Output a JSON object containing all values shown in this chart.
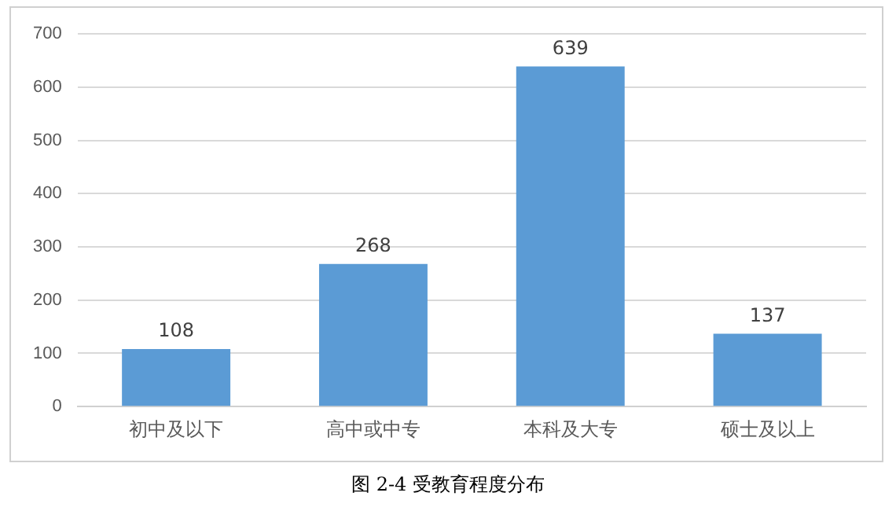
{
  "chart_data": {
    "type": "bar",
    "categories": [
      "初中及以下",
      "高中或中专",
      "本科及大专",
      "硕士及以上"
    ],
    "values": [
      108,
      268,
      639,
      137
    ],
    "color": "#5b9bd5",
    "ylim": [
      0,
      700
    ],
    "yticks": [
      0,
      100,
      200,
      300,
      400,
      500,
      600,
      700
    ],
    "grid": "y",
    "data_labels": true,
    "legend": false,
    "annotations": [
      "图 2-4   受教育程度分布"
    ]
  }
}
